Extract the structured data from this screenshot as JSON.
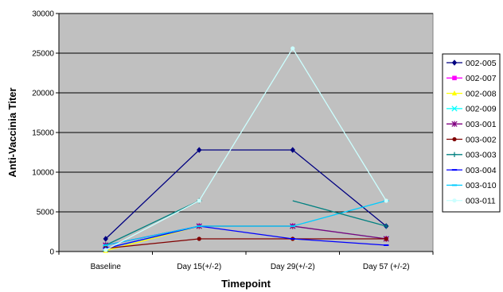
{
  "chart_data": {
    "type": "line",
    "title": "",
    "xlabel": "Timepoint",
    "ylabel": "Anti-Vaccinia Titer",
    "categories": [
      "Baseline",
      "Day 15(+/-2)",
      "Day 29(+/-2)",
      "Day 57 (+/-2)"
    ],
    "ylim": [
      0,
      30000
    ],
    "yticks": [
      0,
      5000,
      10000,
      15000,
      20000,
      25000,
      30000
    ],
    "ytick_labels": [
      "0",
      "5000",
      "10000",
      "15000",
      "20000",
      "25000",
      "30000"
    ],
    "grid": "horizontal",
    "plot_background": "#c0c0c0",
    "legend_position": "right",
    "series": [
      {
        "name": "002-005",
        "values": [
          1600,
          12800,
          12800,
          3200
        ],
        "color": "#000080",
        "marker": "diamond"
      },
      {
        "name": "002-007",
        "values": [
          800,
          3200,
          3200,
          1600
        ],
        "color": "#ff00ff",
        "marker": "square"
      },
      {
        "name": "002-008",
        "values": [
          100,
          3200,
          3200,
          1600
        ],
        "color": "#ffff00",
        "marker": "triangle"
      },
      {
        "name": "002-009",
        "values": [
          400,
          3200,
          3200,
          1600
        ],
        "color": "#00ffff",
        "marker": "x"
      },
      {
        "name": "003-001",
        "values": [
          800,
          3200,
          3200,
          1600
        ],
        "color": "#800080",
        "marker": "star"
      },
      {
        "name": "003-002",
        "values": [
          400,
          1600,
          1600,
          1600
        ],
        "color": "#800000",
        "marker": "circle"
      },
      {
        "name": "003-003",
        "values": [
          800,
          6400,
          null,
          3200
        ],
        "color": "#008080",
        "marker": "plus"
      },
      {
        "name": "003-004",
        "values": [
          400,
          3200,
          1600,
          800
        ],
        "color": "#0000ff",
        "marker": "dash"
      },
      {
        "name": "003-010",
        "values": [
          800,
          3200,
          3200,
          6400
        ],
        "color": "#00ccff",
        "marker": "dash"
      },
      {
        "name": "003-011",
        "values": [
          200,
          6400,
          25600,
          6400
        ],
        "color": "#ccffff",
        "marker": "circle"
      }
    ],
    "extra_segments": [
      {
        "series": "003-003",
        "from_index": 2,
        "from_value": 6400,
        "to_index": 3,
        "to_value": 3200
      }
    ]
  }
}
